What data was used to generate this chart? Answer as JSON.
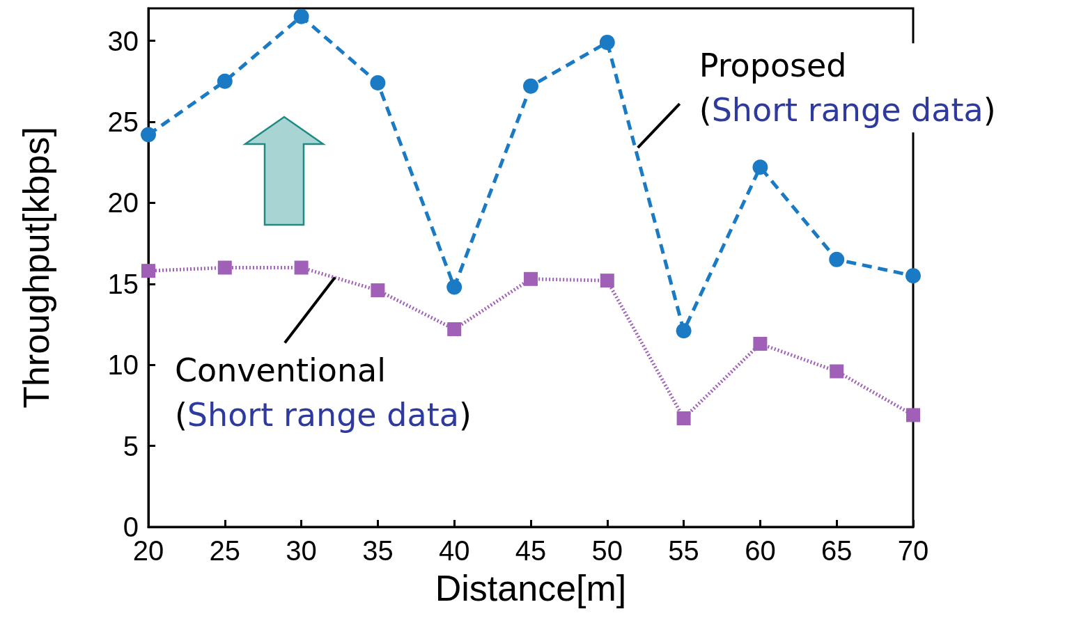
{
  "chart_data": {
    "type": "line",
    "xlabel": "Distance[m]",
    "ylabel": "Throughput[kbps]",
    "x": [
      20,
      25,
      30,
      35,
      40,
      45,
      50,
      55,
      60,
      65,
      70
    ],
    "series": [
      {
        "color": "#1a7ac4",
        "marker": "circle",
        "line_style": "dashed",
        "values": [
          24.2,
          27.5,
          31.5,
          27.4,
          14.8,
          27.2,
          29.9,
          12.1,
          22.2,
          16.5,
          15.5
        ]
      },
      {
        "color": "#a060b8",
        "marker": "square",
        "line_style": "dotted",
        "values": [
          15.8,
          16.0,
          16.0,
          14.6,
          12.2,
          15.3,
          15.2,
          6.7,
          11.3,
          9.6,
          6.9
        ]
      }
    ],
    "annotations": [
      {
        "text": "Proposed\n(Short range data)",
        "x": 52,
        "y": 23.4
      },
      {
        "text": "Conventional\n(Short range data)",
        "x": 32.2,
        "y": 15.4
      }
    ],
    "xlim": [
      20,
      70
    ],
    "ylim": [
      0,
      32
    ],
    "xticks": [
      20,
      25,
      30,
      35,
      40,
      45,
      50,
      55,
      60,
      65,
      70
    ],
    "yticks": [
      0,
      5,
      10,
      15,
      20,
      25,
      30
    ],
    "grid": false
  }
}
